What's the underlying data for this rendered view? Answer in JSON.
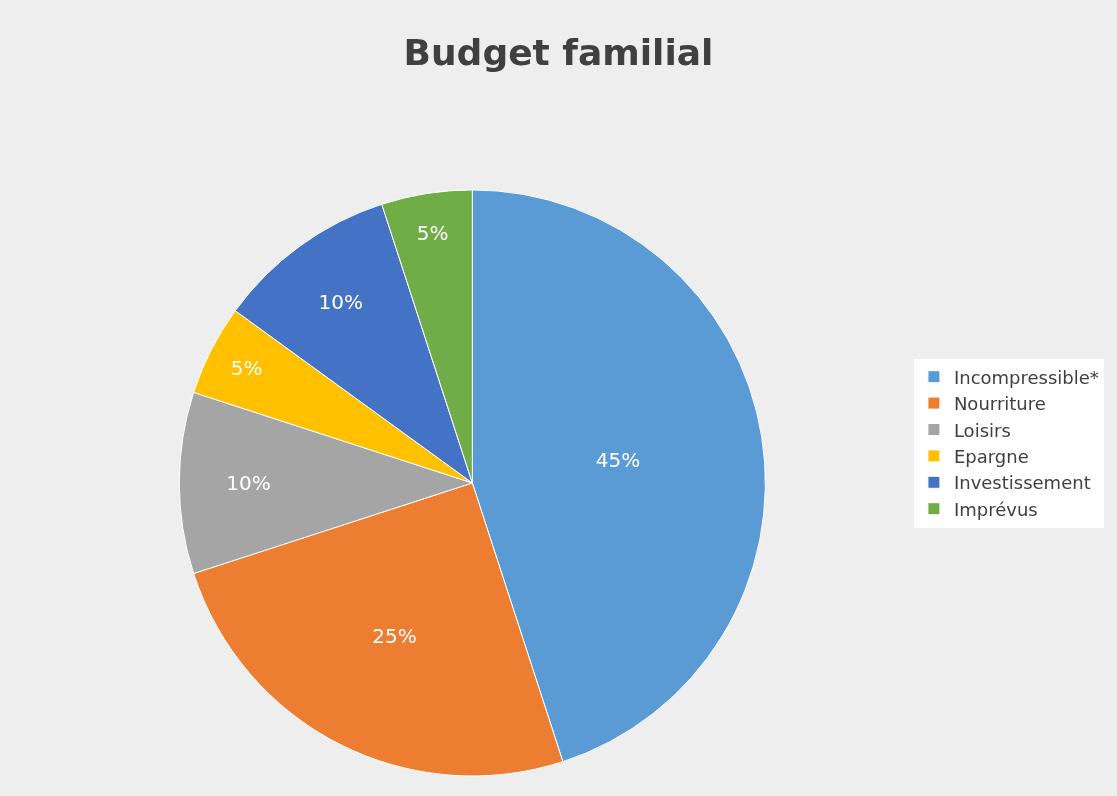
{
  "chart_data": {
    "type": "pie",
    "title": "Budget familial",
    "categories": [
      "Incompressible*",
      "Nourriture",
      "Loisirs",
      "Epargne",
      "Investissement",
      "Imprévus"
    ],
    "values": [
      45,
      25,
      10,
      5,
      10,
      5
    ],
    "value_labels": [
      "45%",
      "25%",
      "10%",
      "5%",
      "10%",
      "5%"
    ],
    "colors": [
      "#5b9bd5",
      "#ed7d31",
      "#a5a5a5",
      "#ffc000",
      "#4472c4",
      "#70ad47"
    ],
    "legend": "right"
  }
}
